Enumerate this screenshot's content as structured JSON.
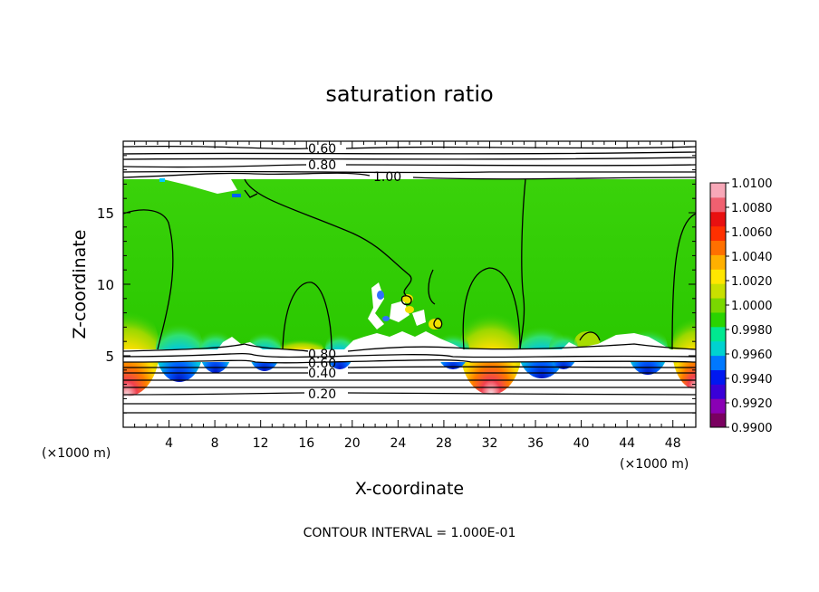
{
  "chart_data": {
    "type": "heatmap",
    "title": "saturation ratio",
    "xlabel": "X-coordinate",
    "ylabel": "Z-coordinate",
    "x_unit_left": "(×1000 m)",
    "x_unit_right": "(×1000 m)",
    "footer": "CONTOUR INTERVAL = 1.000E-01",
    "xlim": [
      0,
      50
    ],
    "ylim": [
      0,
      20
    ],
    "x_ticks": [
      "4",
      "8",
      "12",
      "16",
      "20",
      "24",
      "28",
      "32",
      "36",
      "40",
      "44",
      "48"
    ],
    "y_ticks": [
      "5",
      "10",
      "15"
    ],
    "colorbar": {
      "labels": [
        "1.0100",
        "1.0080",
        "1.0060",
        "1.0040",
        "1.0020",
        "1.0000",
        "0.9980",
        "0.9960",
        "0.9940",
        "0.9920",
        "0.9900"
      ],
      "colors": [
        "#7a0060",
        "#8a00b4",
        "#3a00d8",
        "#0018f0",
        "#0078ff",
        "#00d2d0",
        "#00e890",
        "#2ad400",
        "#7ad800",
        "#c8e000",
        "#ffe600",
        "#ffb000",
        "#ff7000",
        "#ff3000",
        "#e81010",
        "#f06070",
        "#f8a8b8"
      ]
    },
    "contour_labels": [
      "0.60",
      "0.80",
      "1.00",
      "0.80",
      "0.60",
      "0.40",
      "0.20"
    ],
    "contour_label_values": [
      0.6,
      0.8,
      1.0,
      0.8,
      0.6,
      0.4,
      0.2
    ]
  }
}
